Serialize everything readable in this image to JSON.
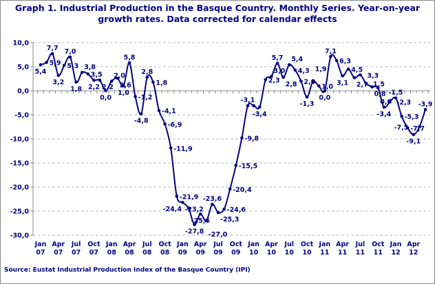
{
  "chart_data": {
    "type": "line",
    "title": "Graph 1. Industrial Production in the Basque Country. Monthly Series. Year-on-year growth rates. Data corrected for calendar effects",
    "source": "Source: Eustat Industrial Production Index of the Basque Country (IPI)",
    "xlabel": "",
    "ylabel": "",
    "ylim": [
      -30,
      10
    ],
    "yticks": [
      "10,0",
      "5,0",
      "0,0",
      "-5,0",
      "-10,0",
      "-15,0",
      "-20,0",
      "-25,0",
      "-30,0"
    ],
    "ytick_values": [
      10,
      5,
      0,
      -5,
      -10,
      -15,
      -20,
      -25,
      -30
    ],
    "xtick_labels": [
      [
        "Jan",
        "07"
      ],
      [
        "Apr",
        "07"
      ],
      [
        "Jul",
        "07"
      ],
      [
        "Oct",
        "07"
      ],
      [
        "Jan",
        "08"
      ],
      [
        "Apr",
        "08"
      ],
      [
        "Jul",
        "08"
      ],
      [
        "Oct",
        "08"
      ],
      [
        "Jan",
        "09"
      ],
      [
        "Apr",
        "09"
      ],
      [
        "Jul",
        "09"
      ],
      [
        "Oct",
        "09"
      ],
      [
        "Jan",
        "10"
      ],
      [
        "Apr",
        "10"
      ],
      [
        "Jul",
        "10"
      ],
      [
        "Oct",
        "10"
      ],
      [
        "Jan",
        "11"
      ],
      [
        "Apr",
        "11"
      ],
      [
        "Jul",
        "11"
      ],
      [
        "Oct",
        "11"
      ],
      [
        "Jan",
        "12"
      ],
      [
        "Apr",
        "12"
      ]
    ],
    "grid": "horizontal dashed",
    "color": "#000080",
    "x": [
      "Jan 07",
      "Feb 07",
      "Mar 07",
      "Apr 07",
      "May 07",
      "Jun 07",
      "Jul 07",
      "Aug 07",
      "Sep 07",
      "Oct 07",
      "Nov 07",
      "Dec 07",
      "Jan 08",
      "Feb 08",
      "Mar 08",
      "Apr 08",
      "May 08",
      "Jun 08",
      "Jul 08",
      "Aug 08",
      "Sep 08",
      "Oct 08",
      "Nov 08",
      "Dec 08",
      "Jan 09",
      "Feb 09",
      "Mar 09",
      "Apr 09",
      "May 09",
      "Jun 09",
      "Jul 09",
      "Aug 09",
      "Sep 09",
      "Oct 09",
      "Nov 09",
      "Dec 09",
      "Jan 10",
      "Feb 10",
      "Mar 10",
      "Apr 10",
      "May 10",
      "Jun 10",
      "Jul 10",
      "Aug 10",
      "Sep 10",
      "Oct 10",
      "Nov 10",
      "Dec 10",
      "Jan 11",
      "Feb 11",
      "Mar 11",
      "Apr 11",
      "May 11",
      "Jun 11",
      "Jul 11",
      "Aug 11",
      "Sep 11",
      "Oct 11",
      "Nov 11",
      "Dec 11",
      "Jan 12",
      "Feb 12",
      "Mar 12",
      "Apr 12",
      "May 12",
      "Jun 12"
    ],
    "values": [
      5.4,
      5.9,
      7.7,
      3.2,
      5.3,
      7.0,
      1.8,
      3.8,
      3.5,
      2.2,
      2.2,
      0.0,
      2.0,
      2.6,
      1.0,
      5.8,
      -1.2,
      -4.8,
      2.8,
      1.8,
      -4.1,
      -6.9,
      -11.9,
      -21.9,
      -23.2,
      -24.4,
      -27.8,
      -25.6,
      -27.0,
      -23.6,
      -25.3,
      -24.6,
      -20.4,
      -15.5,
      -9.8,
      -3.1,
      -3.1,
      -3.4,
      2.3,
      3.0,
      5.7,
      2.8,
      5.4,
      4.3,
      2.0,
      -1.3,
      1.9,
      1.0,
      0.0,
      7.1,
      6.3,
      3.1,
      4.5,
      2.7,
      3.3,
      1.5,
      0.8,
      0.6,
      -3.4,
      -2.3,
      -1.5,
      -5.3,
      -7.7,
      -9.1,
      -7.5,
      -3.9
    ],
    "data_labels": [
      "5,4",
      "5,9",
      "7,7",
      "3,2",
      "5,3",
      "7,0",
      "1,8",
      "3,8",
      "3,5",
      "2,2",
      "2,2",
      "0,0",
      "2,0",
      "2,6",
      "1,0",
      "5,8",
      "-1,2",
      "-4,8",
      "2,8",
      "1,8",
      "-4,1",
      "-6,9",
      "-11,9",
      "-21,9",
      "-23,2",
      "-24,4",
      "-27,8",
      "-25,6",
      "-27,0",
      "-23,6",
      "-25,3",
      "-24,6",
      "-20,4",
      "-15,5",
      "-9,8",
      "-3,1",
      "",
      "-3,4",
      "2,3",
      "3,0",
      "5,7",
      "2,8",
      "5,4",
      "4,3",
      "2,0",
      "-1,3",
      "1,9",
      "1,0",
      "0,0",
      "7,1",
      "6,3",
      "3,1",
      "4,5",
      "2,7",
      "3,3",
      "1,5",
      "0,8",
      "0,6",
      "-3,4",
      "-2,3",
      "-1,5",
      "-5,3",
      "-7,7",
      "-9,1",
      "-7,5",
      "-3,9"
    ]
  }
}
